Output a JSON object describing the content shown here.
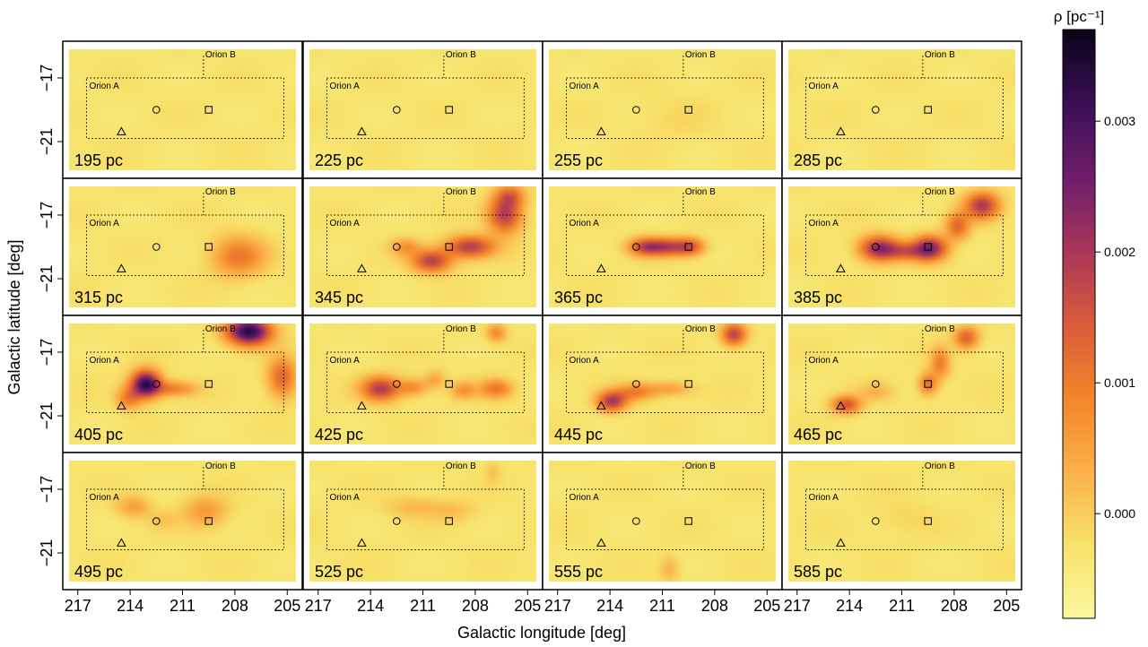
{
  "chart_data": {
    "type": "heatmap",
    "layout": {
      "rows": 4,
      "cols": 4
    },
    "xlabel": "Galactic longitude [deg]",
    "ylabel": "Galactic latitude [deg]",
    "xlim": [
      217.5,
      204.5
    ],
    "ylim": [
      -22.8,
      -15.2
    ],
    "x_ticks": [
      "217",
      "214",
      "211",
      "208",
      "205"
    ],
    "x_tick_values": [
      217,
      214,
      211,
      208,
      205
    ],
    "y_ticks": [
      "−17",
      "−21"
    ],
    "y_tick_values": [
      -17,
      -21
    ],
    "colorbar": {
      "label": "ρ [pc⁻¹]",
      "range": [
        -0.0008,
        0.0037
      ],
      "ticks": [
        "0.000",
        "0.001",
        "0.002",
        "0.003"
      ],
      "tick_values": [
        0.0,
        0.001,
        0.002,
        0.003
      ],
      "colors": [
        "#FAF8A0",
        "#F7E26A",
        "#FBB04A",
        "#F2852A",
        "#D95B3A",
        "#A8365A",
        "#6E1D6B",
        "#3A0F55",
        "#0A0417"
      ]
    },
    "regions": [
      {
        "name": "Orion A",
        "l_range": [
          216.5,
          205.2
        ],
        "b_range": [
          -20.8,
          -17.0
        ]
      },
      {
        "name": "Orion B",
        "l_range": [
          209.8,
          205.2
        ],
        "b_range": [
          -17.0,
          -15.6
        ]
      }
    ],
    "markers": [
      {
        "shape": "triangle",
        "l": 214.5,
        "b": -20.4
      },
      {
        "shape": "circle",
        "l": 212.5,
        "b": -19.0
      },
      {
        "shape": "square",
        "l": 209.5,
        "b": -19.0
      }
    ],
    "panels": [
      {
        "distance": "195 pc",
        "blobs": []
      },
      {
        "distance": "225 pc",
        "blobs": []
      },
      {
        "distance": "255 pc",
        "blobs": [
          {
            "l": 210.5,
            "b": -19.6,
            "sl": 1.5,
            "sb": 1.0,
            "amp": 0.00015
          }
        ]
      },
      {
        "distance": "285 pc",
        "blobs": []
      },
      {
        "distance": "315 pc",
        "blobs": [
          {
            "l": 207.8,
            "b": -19.6,
            "sl": 1.1,
            "sb": 0.9,
            "amp": 0.0013
          }
        ]
      },
      {
        "distance": "345 pc",
        "blobs": [
          {
            "l": 206.3,
            "b": -17.0,
            "sl": 0.7,
            "sb": 0.8,
            "amp": 0.0022
          },
          {
            "l": 208.3,
            "b": -19.0,
            "sl": 1.0,
            "sb": 0.5,
            "amp": 0.0022
          },
          {
            "l": 210.5,
            "b": -19.9,
            "sl": 0.8,
            "sb": 0.5,
            "amp": 0.0021
          },
          {
            "l": 212.0,
            "b": -19.0,
            "sl": 0.6,
            "sb": 0.4,
            "amp": 0.0009
          },
          {
            "l": 206.0,
            "b": -15.8,
            "sl": 0.6,
            "sb": 0.5,
            "amp": 0.0013
          }
        ]
      },
      {
        "distance": "365 pc",
        "blobs": [
          {
            "l": 212.0,
            "b": -19.0,
            "sl": 0.7,
            "sb": 0.4,
            "amp": 0.0018
          },
          {
            "l": 210.7,
            "b": -19.0,
            "sl": 0.8,
            "sb": 0.4,
            "amp": 0.0018
          },
          {
            "l": 209.4,
            "b": -19.0,
            "sl": 0.6,
            "sb": 0.4,
            "amp": 0.0016
          }
        ]
      },
      {
        "distance": "385 pc",
        "blobs": [
          {
            "l": 212.3,
            "b": -19.1,
            "sl": 0.8,
            "sb": 0.55,
            "amp": 0.0026
          },
          {
            "l": 209.4,
            "b": -19.1,
            "sl": 0.7,
            "sb": 0.55,
            "amp": 0.0027
          },
          {
            "l": 210.8,
            "b": -19.3,
            "sl": 0.7,
            "sb": 0.4,
            "amp": 0.0012
          },
          {
            "l": 206.4,
            "b": -16.4,
            "sl": 0.7,
            "sb": 0.6,
            "amp": 0.0022
          },
          {
            "l": 207.8,
            "b": -17.7,
            "sl": 0.5,
            "sb": 0.6,
            "amp": 0.0015
          }
        ]
      },
      {
        "distance": "405 pc",
        "blobs": [
          {
            "l": 207.2,
            "b": -15.7,
            "sl": 0.9,
            "sb": 0.6,
            "amp": 0.0036
          },
          {
            "l": 213.1,
            "b": -19.0,
            "sl": 0.6,
            "sb": 0.6,
            "amp": 0.0035
          },
          {
            "l": 211.5,
            "b": -19.3,
            "sl": 0.9,
            "sb": 0.35,
            "amp": 0.0012
          },
          {
            "l": 205.3,
            "b": -18.6,
            "sl": 0.6,
            "sb": 0.9,
            "amp": 0.0016
          },
          {
            "l": 214.1,
            "b": -19.9,
            "sl": 0.5,
            "sb": 0.5,
            "amp": 0.0012
          }
        ]
      },
      {
        "distance": "425 pc",
        "blobs": [
          {
            "l": 213.4,
            "b": -19.3,
            "sl": 0.8,
            "sb": 0.55,
            "amp": 0.0022
          },
          {
            "l": 211.5,
            "b": -19.2,
            "sl": 0.6,
            "sb": 0.4,
            "amp": 0.001
          },
          {
            "l": 206.8,
            "b": -19.3,
            "sl": 0.7,
            "sb": 0.45,
            "amp": 0.0013
          },
          {
            "l": 208.7,
            "b": -19.4,
            "sl": 0.5,
            "sb": 0.4,
            "amp": 0.0009
          },
          {
            "l": 210.3,
            "b": -18.7,
            "sl": 0.4,
            "sb": 0.4,
            "amp": 0.0007
          },
          {
            "l": 206.8,
            "b": -15.8,
            "sl": 0.4,
            "sb": 0.4,
            "amp": 0.0011
          }
        ]
      },
      {
        "distance": "445 pc",
        "blobs": [
          {
            "l": 213.9,
            "b": -20.1,
            "sl": 0.6,
            "sb": 0.45,
            "amp": 0.0022
          },
          {
            "l": 212.5,
            "b": -19.5,
            "sl": 0.8,
            "sb": 0.4,
            "amp": 0.0012
          },
          {
            "l": 210.5,
            "b": -19.3,
            "sl": 0.9,
            "sb": 0.35,
            "amp": 0.0008
          },
          {
            "l": 206.9,
            "b": -15.9,
            "sl": 0.5,
            "sb": 0.5,
            "amp": 0.0021
          }
        ]
      },
      {
        "distance": "465 pc",
        "blobs": [
          {
            "l": 214.2,
            "b": -20.3,
            "sl": 0.6,
            "sb": 0.4,
            "amp": 0.0018
          },
          {
            "l": 209.5,
            "b": -19.0,
            "sl": 0.4,
            "sb": 0.5,
            "amp": 0.0014
          },
          {
            "l": 208.8,
            "b": -17.7,
            "sl": 0.4,
            "sb": 0.7,
            "amp": 0.0012
          },
          {
            "l": 207.3,
            "b": -16.1,
            "sl": 0.5,
            "sb": 0.5,
            "amp": 0.0016
          },
          {
            "l": 212.5,
            "b": -19.5,
            "sl": 0.7,
            "sb": 0.4,
            "amp": 0.0005
          }
        ]
      },
      {
        "distance": "495 pc",
        "blobs": [
          {
            "l": 213.8,
            "b": -18.1,
            "sl": 0.7,
            "sb": 0.5,
            "amp": 0.0008
          },
          {
            "l": 209.7,
            "b": -18.4,
            "sl": 0.9,
            "sb": 0.7,
            "amp": 0.0009
          },
          {
            "l": 212.1,
            "b": -18.9,
            "sl": 0.6,
            "sb": 0.4,
            "amp": 0.0003
          }
        ]
      },
      {
        "distance": "525 pc",
        "blobs": [
          {
            "l": 211.5,
            "b": -18.1,
            "sl": 1.2,
            "sb": 0.5,
            "amp": 0.0005
          },
          {
            "l": 209.2,
            "b": -18.4,
            "sl": 0.9,
            "sb": 0.5,
            "amp": 0.0004
          },
          {
            "l": 207.0,
            "b": -15.9,
            "sl": 0.3,
            "sb": 0.5,
            "amp": 0.0004
          }
        ]
      },
      {
        "distance": "555 pc",
        "blobs": [
          {
            "l": 210.6,
            "b": -22.0,
            "sl": 0.4,
            "sb": 0.6,
            "amp": 0.0006
          }
        ]
      },
      {
        "distance": "585 pc",
        "blobs": [
          {
            "l": 211.0,
            "b": -18.8,
            "sl": 1.2,
            "sb": 0.8,
            "amp": 0.0002
          }
        ]
      }
    ]
  }
}
